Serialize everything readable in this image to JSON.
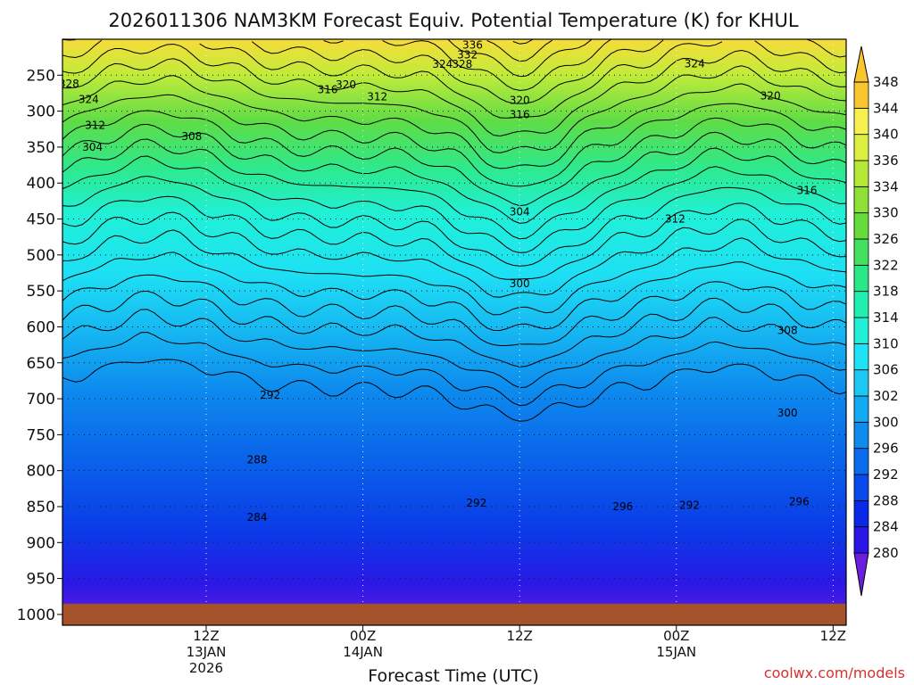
{
  "chart_data": {
    "type": "contour",
    "title": "2026011306 NAM3KM Forecast Equiv. Potential Temperature (K) for KHUL",
    "xlabel": "Forecast Time (UTC)",
    "ylabel": "",
    "credit": "coolwx.com/models",
    "x_hours_range": [
      -5,
      55
    ],
    "y_pressure_range": [
      200,
      1015
    ],
    "ground_pressure": 985,
    "y_ticks": [
      250,
      300,
      350,
      400,
      450,
      500,
      550,
      600,
      650,
      700,
      750,
      800,
      850,
      900,
      950,
      1000
    ],
    "x_ticks": [
      {
        "hour": 6,
        "label": "12Z",
        "date": "13JAN",
        "year": "2026"
      },
      {
        "hour": 18,
        "label": "00Z",
        "date": "14JAN",
        "year": ""
      },
      {
        "hour": 30,
        "label": "12Z",
        "date": "",
        "year": ""
      },
      {
        "hour": 42,
        "label": "00Z",
        "date": "15JAN",
        "year": ""
      },
      {
        "hour": 54,
        "label": "12Z",
        "date": "",
        "year": ""
      }
    ],
    "colorbar": {
      "levels": [
        280,
        284,
        288,
        292,
        296,
        300,
        302,
        306,
        310,
        314,
        318,
        322,
        326,
        330,
        334,
        336,
        340,
        344,
        348
      ],
      "colors": [
        "#6a1fe0",
        "#2b14e6",
        "#0a28e8",
        "#0b4aea",
        "#0a6cec",
        "#0d8cee",
        "#12aaf0",
        "#1ec6f2",
        "#1fe2f4",
        "#20f0d8",
        "#22eeb0",
        "#2ae888",
        "#44e060",
        "#66dc3c",
        "#8ee036",
        "#b6e838",
        "#dcef40",
        "#f6f050",
        "#f9c62e"
      ]
    },
    "theta_e_levels": [
      300,
      302,
      304,
      306,
      308,
      310,
      312,
      314,
      316,
      318,
      320,
      322,
      324,
      326,
      328,
      330,
      332,
      334,
      336,
      338,
      340,
      342,
      344,
      346
    ],
    "contour_labels": [
      {
        "text": "336",
        "hour": 26.4,
        "p": 208
      },
      {
        "text": "332",
        "hour": 26.0,
        "p": 222
      },
      {
        "text": "324",
        "hour": 24.1,
        "p": 235
      },
      {
        "text": "328",
        "hour": 25.6,
        "p": 235
      },
      {
        "text": "324",
        "hour": 43.4,
        "p": 234
      },
      {
        "text": "320",
        "hour": 16.7,
        "p": 263
      },
      {
        "text": "320",
        "hour": 49.2,
        "p": 279
      },
      {
        "text": "328",
        "hour": -4.5,
        "p": 262
      },
      {
        "text": "316",
        "hour": 15.3,
        "p": 270
      },
      {
        "text": "312",
        "hour": 19.1,
        "p": 280
      },
      {
        "text": "324",
        "hour": -3.0,
        "p": 284
      },
      {
        "text": "320",
        "hour": 30.0,
        "p": 285
      },
      {
        "text": "316",
        "hour": 30.0,
        "p": 305
      },
      {
        "text": "312",
        "hour": -2.5,
        "p": 320
      },
      {
        "text": "308",
        "hour": 4.9,
        "p": 335
      },
      {
        "text": "304",
        "hour": -2.7,
        "p": 350
      },
      {
        "text": "316",
        "hour": 52.0,
        "p": 410
      },
      {
        "text": "304",
        "hour": 30.0,
        "p": 440
      },
      {
        "text": "312",
        "hour": 41.9,
        "p": 450
      },
      {
        "text": "300",
        "hour": 30.0,
        "p": 540
      },
      {
        "text": "308",
        "hour": 50.5,
        "p": 605
      },
      {
        "text": "292",
        "hour": 10.9,
        "p": 695
      },
      {
        "text": "300",
        "hour": 50.5,
        "p": 720
      },
      {
        "text": "288",
        "hour": 9.9,
        "p": 785
      },
      {
        "text": "292",
        "hour": 26.7,
        "p": 845
      },
      {
        "text": "296",
        "hour": 37.9,
        "p": 850
      },
      {
        "text": "292",
        "hour": 43.0,
        "p": 848
      },
      {
        "text": "296",
        "hour": 51.4,
        "p": 843
      },
      {
        "text": "284",
        "hour": 9.9,
        "p": 865
      }
    ]
  }
}
